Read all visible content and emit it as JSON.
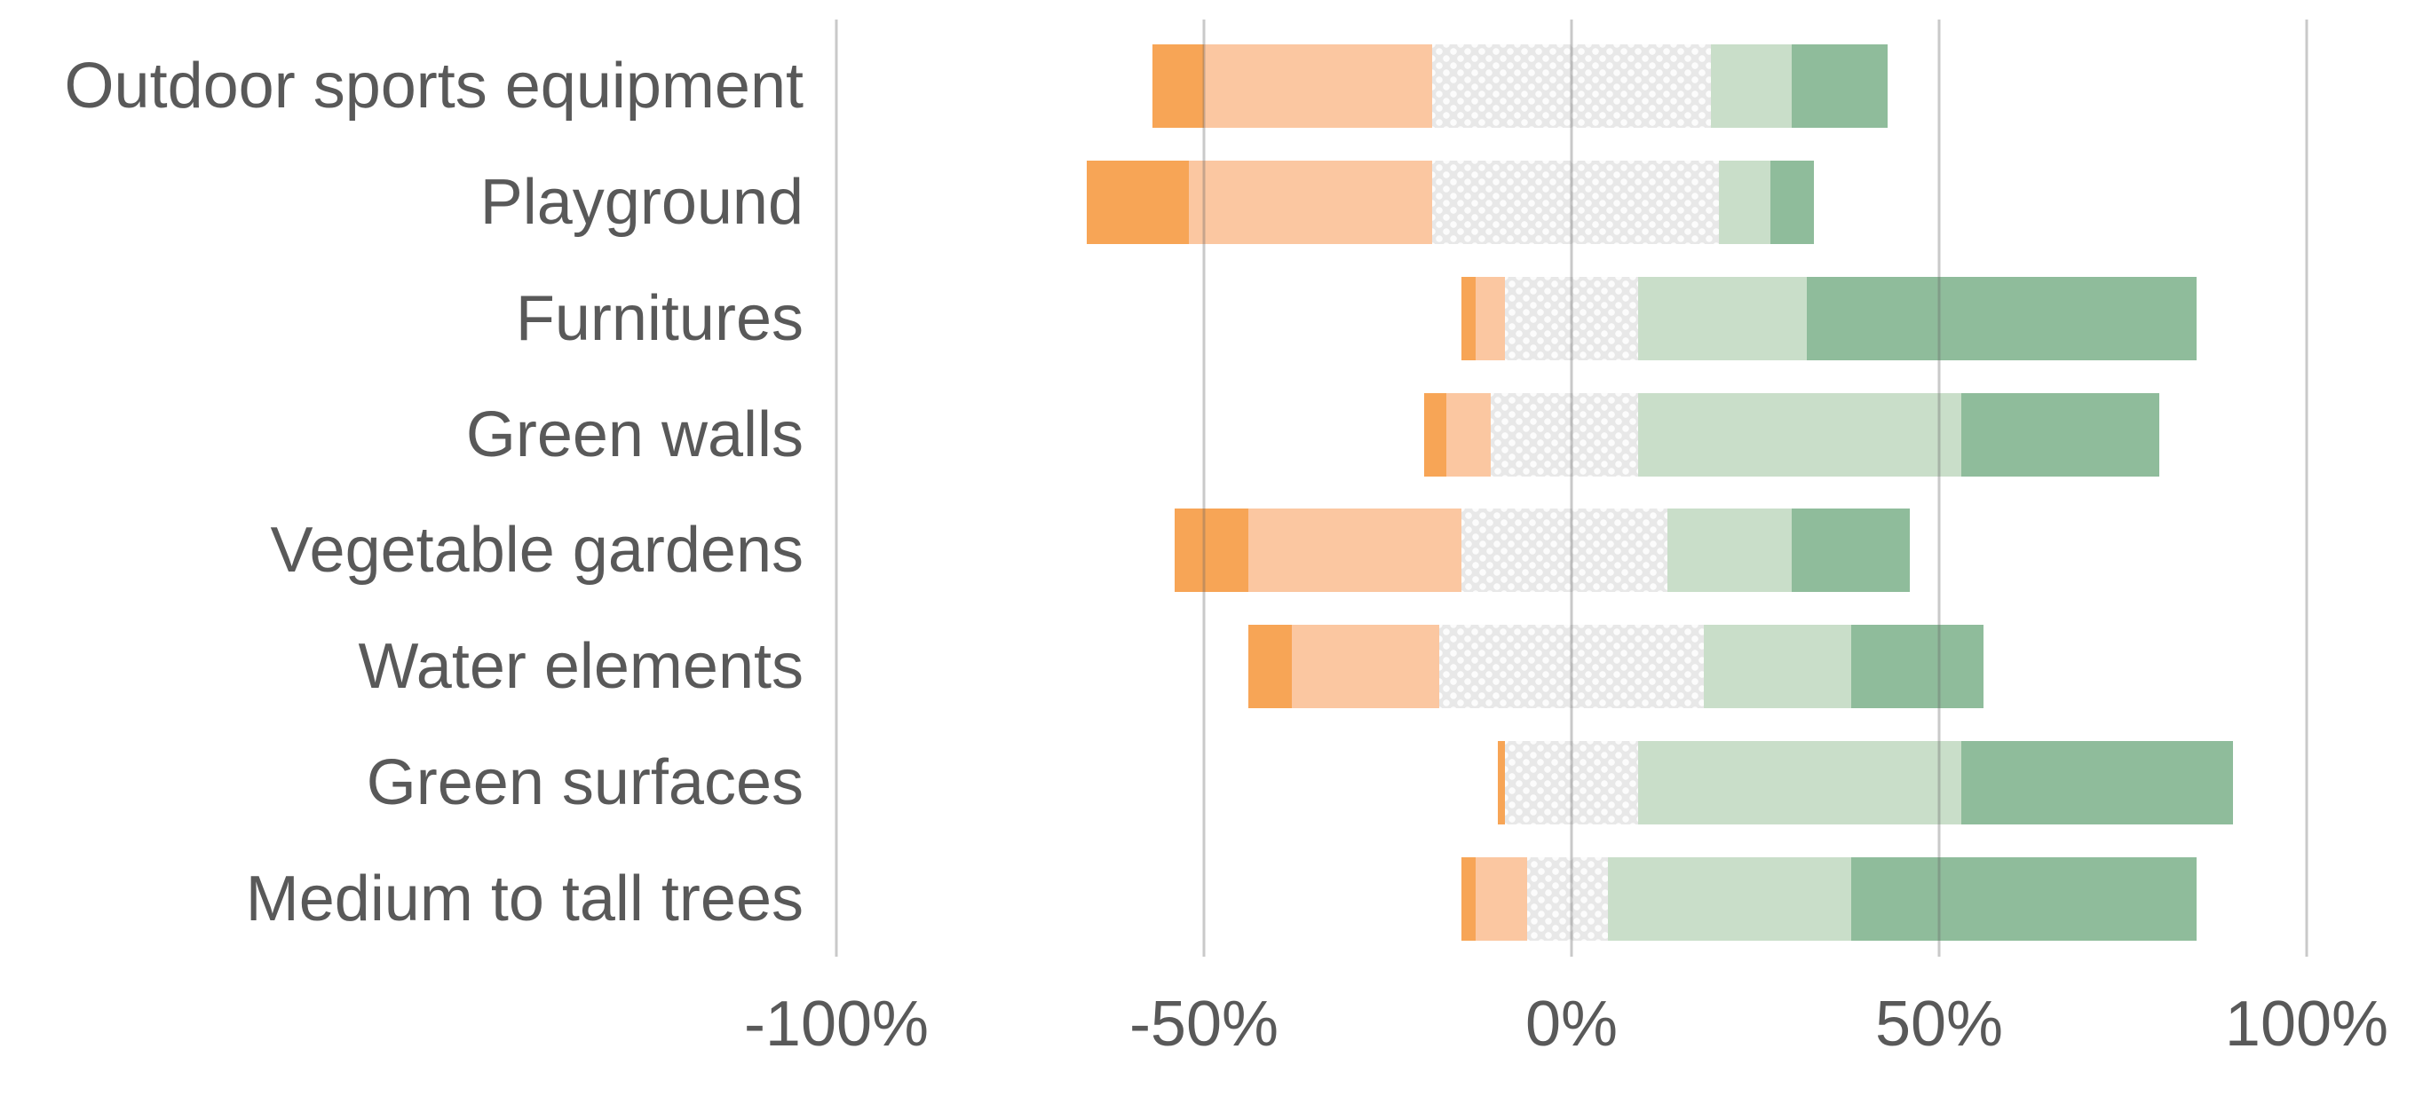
{
  "chart_data": {
    "type": "bar",
    "orientation": "horizontal",
    "variant": "diverging-stacked",
    "title": "",
    "xlabel": "",
    "ylabel": "",
    "legend": "none",
    "grid": "vertical",
    "xlim": [
      -100,
      100
    ],
    "xticks": {
      "labels": [
        "-100%",
        "-50%",
        "0%",
        "50%",
        "100%"
      ],
      "values": [
        -100,
        -50,
        0,
        50,
        100
      ]
    },
    "categories": [
      "Outdoor sports equipment",
      "Playground",
      "Furnitures",
      "Green walls",
      "Vegetable gardens",
      "Water elements",
      "Green surfaces",
      "Medium to tall trees"
    ],
    "row_start_percent": [
      -57,
      -66,
      -15,
      -20,
      -54,
      -44,
      -10,
      -15
    ],
    "series": [
      {
        "name": "dark-orange-strong-decrease",
        "color": "#F7A556",
        "texture": "solid",
        "values": [
          7,
          14,
          2,
          3,
          10,
          6,
          1,
          2
        ]
      },
      {
        "name": "light-orange-decrease",
        "color": "#FBC7A1",
        "texture": "solid",
        "values": [
          31,
          33,
          4,
          6,
          29,
          20,
          0,
          7
        ]
      },
      {
        "name": "gray-neutral",
        "color": "#E8E8E8",
        "texture": "dotted",
        "values": [
          38,
          39,
          18,
          20,
          28,
          36,
          18,
          11
        ]
      },
      {
        "name": "light-green-increase",
        "color": "#C9DEC9",
        "texture": "solid",
        "values": [
          11,
          7,
          23,
          44,
          17,
          20,
          44,
          33
        ]
      },
      {
        "name": "medium-green-strong-increase",
        "color": "#8FBC9B",
        "texture": "solid",
        "values": [
          13,
          6,
          53,
          27,
          16,
          18,
          37,
          47
        ]
      }
    ],
    "row_end_percent": [
      43,
      33,
      85,
      80,
      46,
      56,
      90,
      85
    ]
  },
  "styles": {
    "background": "#FFFFFF",
    "label_color": "#595959",
    "gridline_color": "#C9C9C9"
  }
}
